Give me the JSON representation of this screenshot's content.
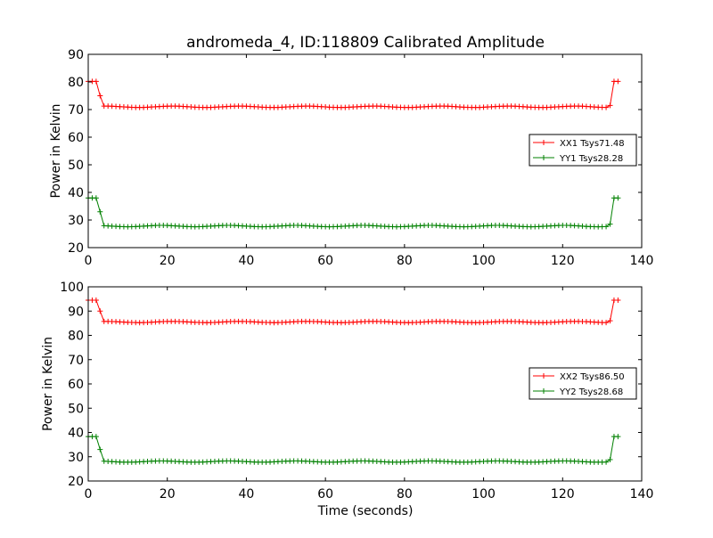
{
  "figure": {
    "title": "andromeda_4, ID:118809 Calibrated Amplitude",
    "xlabel": "Time (seconds)"
  },
  "colors": {
    "xx": "#ff0000",
    "yy": "#008000",
    "axes": "#000000",
    "legend_border": "#000000"
  },
  "chart_data": [
    {
      "type": "line",
      "ylabel": "Power in Kelvin",
      "xlabel": "",
      "xlim": [
        0,
        140
      ],
      "ylim": [
        20,
        90
      ],
      "xticks": [
        "0",
        "20",
        "40",
        "60",
        "80",
        "100",
        "120",
        "140"
      ],
      "yticks": [
        "20",
        "30",
        "40",
        "50",
        "60",
        "70",
        "80",
        "90"
      ],
      "grid": false,
      "legend_placement": "center-right",
      "series": [
        {
          "name": "XX1 Tsys71.48",
          "color": "#ff0000",
          "marker": "+",
          "x_start": 0,
          "x_end": 134,
          "x_step": 1,
          "base_value": 71.0,
          "high_value": 80.2,
          "high_x": [
            0,
            1,
            2,
            133,
            134
          ],
          "transition": [
            [
              3,
              75.0
            ],
            [
              132,
              71.5
            ]
          ]
        },
        {
          "name": "YY1 Tsys28.28",
          "color": "#008000",
          "marker": "+",
          "x_start": 0,
          "x_end": 134,
          "x_step": 1,
          "base_value": 27.8,
          "high_value": 38.0,
          "high_x": [
            0,
            1,
            2,
            133,
            134
          ],
          "transition": [
            [
              3,
              33.0
            ],
            [
              132,
              28.5
            ]
          ]
        }
      ]
    },
    {
      "type": "line",
      "ylabel": "Power in Kelvin",
      "xlabel": "Time (seconds)",
      "xlim": [
        0,
        140
      ],
      "ylim": [
        20,
        100
      ],
      "xticks": [
        "0",
        "20",
        "40",
        "60",
        "80",
        "100",
        "120",
        "140"
      ],
      "yticks": [
        "20",
        "30",
        "40",
        "50",
        "60",
        "70",
        "80",
        "90",
        "100"
      ],
      "grid": false,
      "legend_placement": "center-right",
      "series": [
        {
          "name": "XX2 Tsys86.50",
          "color": "#ff0000",
          "marker": "+",
          "x_start": 0,
          "x_end": 134,
          "x_step": 1,
          "base_value": 85.5,
          "high_value": 94.5,
          "high_x": [
            0,
            1,
            2,
            133,
            134
          ],
          "transition": [
            [
              3,
              90.0
            ],
            [
              132,
              86.0
            ]
          ]
        },
        {
          "name": "YY2 Tsys28.68",
          "color": "#008000",
          "marker": "+",
          "x_start": 0,
          "x_end": 134,
          "x_step": 1,
          "base_value": 28.0,
          "high_value": 38.3,
          "high_x": [
            0,
            1,
            2,
            133,
            134
          ],
          "transition": [
            [
              3,
              33.0
            ],
            [
              132,
              28.8
            ]
          ]
        }
      ]
    }
  ]
}
